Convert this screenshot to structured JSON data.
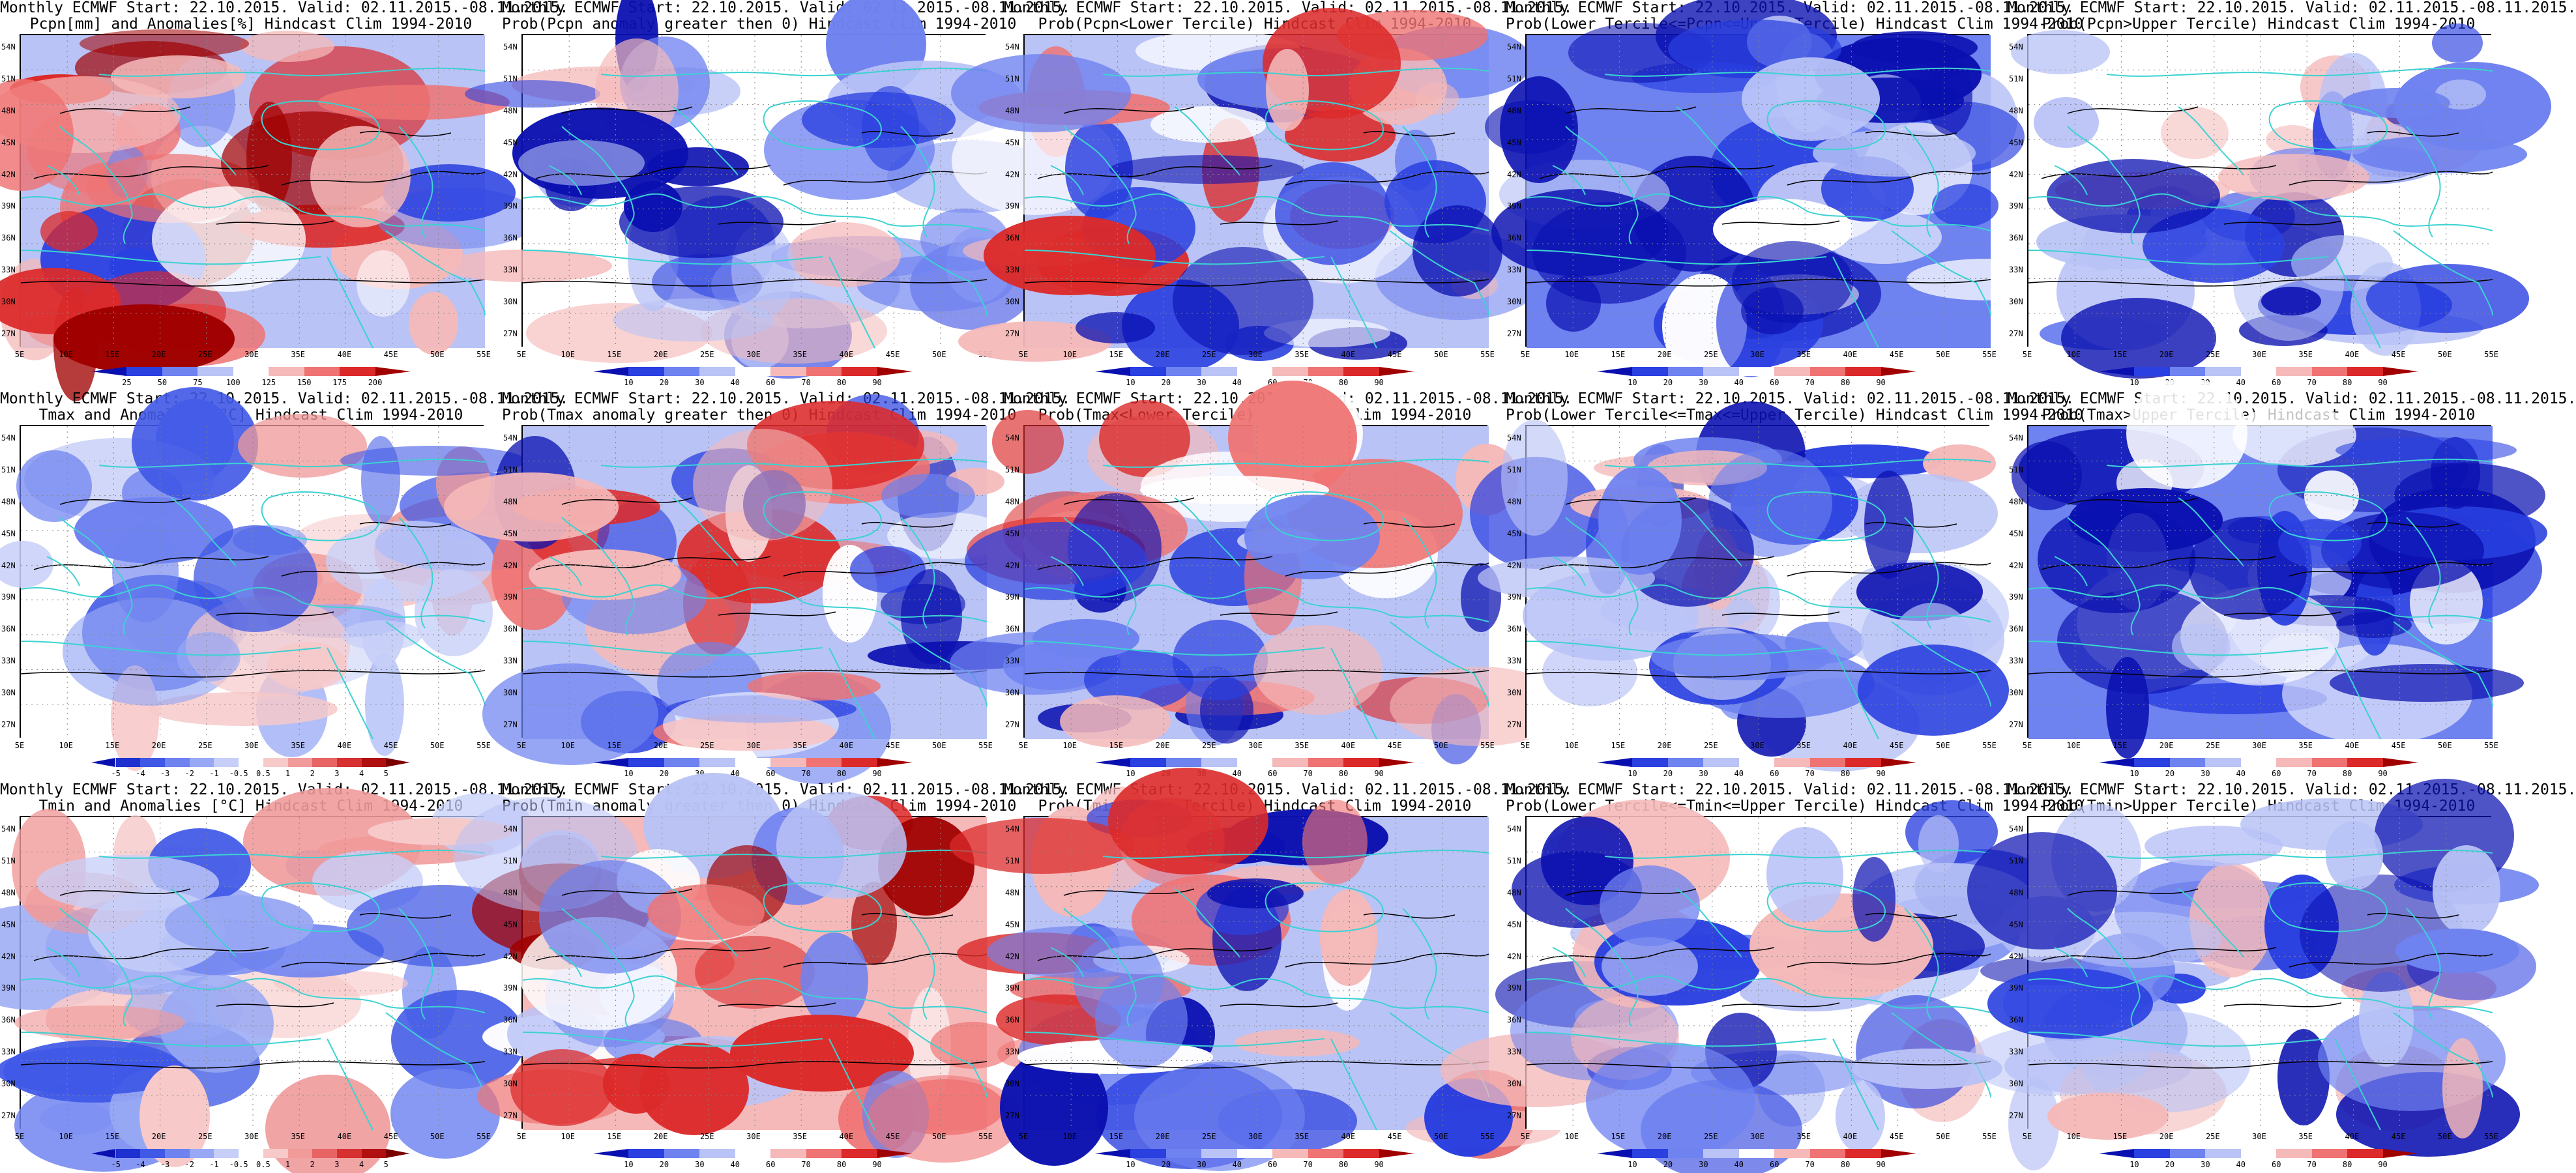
{
  "panels": [
    {
      "title1": "Monthly ECMWF Start: 22.10.2015. Valid: 02.11.2015.-08.11.2015.",
      "title2": "Pcpn[mm] and Anomalies[%] Hindcast Clim 1994-2010",
      "cbar": "pcp",
      "scheme": "anomaly_pcp"
    },
    {
      "title1": "Monthly ECMWF Start: 22.10.2015. Valid: 02.11.2015.-08.11.2015.",
      "title2": "Prob(Pcpn anomaly greater then 0) Hindcast Clim 1994-2010",
      "cbar": "prob",
      "scheme": "prob_low"
    },
    {
      "title1": "Monthly ECMWF Start: 22.10.2015. Valid: 02.11.2015.-08.11.2015.",
      "title2": "Prob(Pcpn<Lower Tercile) Hindcast Clim 1994-2010",
      "cbar": "prob",
      "scheme": "prob_mixed"
    },
    {
      "title1": "Monthly ECMWF Start: 22.10.2015. Valid: 02.11.2015.-08.11.2015.",
      "title2": "Prob(Lower Tercile<=Pcpn<=Upper Tercile) Hindcast Clim 1994-2010",
      "cbar": "prob",
      "scheme": "prob_blue"
    },
    {
      "title1": "Monthly ECMWF Start: 22.10.2015. Valid: 02.11.2015.-08.11.2015.",
      "title2": "Prob(Pcpn>Upper Tercile) Hindcast Clim 1994-2010",
      "cbar": "prob",
      "scheme": "prob_low"
    },
    {
      "title1": "Monthly ECMWF Start: 22.10.2015. Valid: 02.11.2015.-08.11.2015.",
      "title2": "Tmax and Anomalies [°C] Hindcast Clim 1994-2010",
      "cbar": "temp",
      "scheme": "anomaly_t"
    },
    {
      "title1": "Monthly ECMWF Start: 22.10.2015. Valid: 02.11.2015.-08.11.2015.",
      "title2": "Prob(Tmax anomaly greater then 0) Hindcast Clim 1994-2010",
      "cbar": "prob",
      "scheme": "prob_mixed"
    },
    {
      "title1": "Monthly ECMWF Start: 22.10.2015. Valid: 02.11.2015.-08.11.2015.",
      "title2": "Prob(Tmax<Lower Tercile) Hindcast Clim 1994-2010",
      "cbar": "prob",
      "scheme": "prob_mixed"
    },
    {
      "title1": "Monthly ECMWF Start: 22.10.2015. Valid: 02.11.2015.-08.11.2015.",
      "title2": "Prob(Lower Tercile<=Tmax<=Upper Tercile) Hindcast Clim 1994-2010",
      "cbar": "prob",
      "scheme": "prob_low"
    },
    {
      "title1": "Monthly ECMWF Start: 22.10.2015. Valid: 02.11.2015.-08.11.2015.",
      "title2": "Prob(Tmax>Upper Tercile) Hindcast Clim 1994-2010",
      "cbar": "prob",
      "scheme": "prob_blue"
    },
    {
      "title1": "Monthly ECMWF Start: 22.10.2015. Valid: 02.11.2015.-08.11.2015.",
      "title2": "Tmin and Anomalies [°C] Hindcast Clim 1994-2010",
      "cbar": "temp",
      "scheme": "anomaly_t"
    },
    {
      "title1": "Monthly ECMWF Start: 22.10.2015. Valid: 02.11.2015.-08.11.2015.",
      "title2": "Prob(Tmin anomaly greater then 0) Hindcast Clim 1994-2010",
      "cbar": "prob",
      "scheme": "prob_red"
    },
    {
      "title1": "Monthly ECMWF Start: 22.10.2015. Valid: 02.11.2015.-08.11.2015.",
      "title2": "Prob(Tmin<Lower Tercile) Hindcast Clim 1994-2010",
      "cbar": "prob",
      "scheme": "prob_mixed"
    },
    {
      "title1": "Monthly ECMWF Start: 22.10.2015. Valid: 02.11.2015.-08.11.2015.",
      "title2": "Prob(Lower Tercile<=Tmin<=Upper Tercile) Hindcast Clim 1994-2010",
      "cbar": "prob",
      "scheme": "prob_low"
    },
    {
      "title1": "Monthly ECMWF Start: 22.10.2015. Valid: 02.11.2015.-08.11.2015.",
      "title2": "Prob(Tmin>Upper Tercile) Hindcast Clim 1994-2010",
      "cbar": "prob",
      "scheme": "prob_low"
    }
  ],
  "lat_labels": [
    "54N",
    "51N",
    "48N",
    "45N",
    "42N",
    "39N",
    "36N",
    "33N",
    "30N",
    "27N"
  ],
  "lon_labels": [
    "5E",
    "10E",
    "15E",
    "20E",
    "25E",
    "30E",
    "35E",
    "40E",
    "45E",
    "50E",
    "55E"
  ],
  "colorbars": {
    "pcp": {
      "labels": [
        "25",
        "50",
        "75",
        "100",
        "125",
        "150",
        "175",
        "200"
      ],
      "colors": [
        "#0a10b0",
        "#2a40e0",
        "#6e82f0",
        "#b9c3f6",
        "#ffffff",
        "#f5b9b9",
        "#ef7373",
        "#dc2a2a",
        "#a00000"
      ]
    },
    "prob": {
      "labels": [
        "10",
        "20",
        "30",
        "40",
        "60",
        "70",
        "80",
        "90"
      ],
      "colors": [
        "#0a10b0",
        "#2a40e0",
        "#6e82f0",
        "#b9c3f6",
        "#ffffff",
        "#f5b9b9",
        "#ef7373",
        "#dc2a2a",
        "#a00000"
      ]
    },
    "temp": {
      "labels": [
        "-5",
        "-4",
        "-3",
        "-2",
        "-1",
        "-0.5",
        "0.5",
        "1",
        "2",
        "3",
        "4",
        "5"
      ],
      "colors": [
        "#0a10b0",
        "#1f30d0",
        "#3f58e6",
        "#6e82f0",
        "#98a8f4",
        "#c7cff8",
        "#ffffff",
        "#f7c9c9",
        "#f09a9a",
        "#e86464",
        "#d63030",
        "#b01010",
        "#7a0000"
      ]
    }
  },
  "colors": {
    "coast": "#3cd2d2",
    "contour": "#000000"
  }
}
